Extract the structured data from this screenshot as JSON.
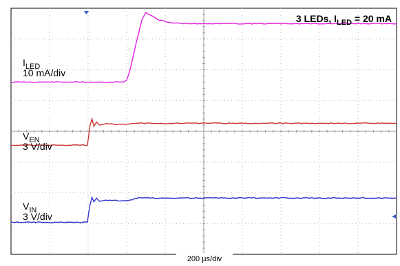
{
  "chart_data": {
    "type": "line",
    "title": {
      "prefix": "3 LEDs, I",
      "sub": "LED",
      "suffix": " = 20 mA"
    },
    "xlabel": "200 µs/div",
    "xlim": [
      0,
      10
    ],
    "ylim": [
      0,
      8
    ],
    "grid": true,
    "x_unit": "div",
    "y_unit": "div",
    "series": [
      {
        "name_main": "I",
        "name_sub": "LED",
        "scale": "10 mA/div",
        "color": "#e020e0",
        "points": [
          [
            0,
            5.6
          ],
          [
            2.92,
            5.6
          ],
          [
            3.0,
            5.66
          ],
          [
            3.1,
            6.05
          ],
          [
            3.25,
            6.9
          ],
          [
            3.4,
            7.64
          ],
          [
            3.5,
            7.86
          ],
          [
            3.62,
            7.77
          ],
          [
            3.85,
            7.61
          ],
          [
            4.2,
            7.52
          ],
          [
            4.7,
            7.5
          ],
          [
            10,
            7.5
          ]
        ]
      },
      {
        "name_main": "V",
        "name_sub": "EN",
        "scale": "3 V/div",
        "color": "#cc3333",
        "points": [
          [
            0,
            3.55
          ],
          [
            1.98,
            3.55
          ],
          [
            2.05,
            4.18
          ],
          [
            2.1,
            4.4
          ],
          [
            2.15,
            4.16
          ],
          [
            2.22,
            4.3
          ],
          [
            2.3,
            4.2
          ],
          [
            2.45,
            4.25
          ],
          [
            2.8,
            4.22
          ],
          [
            3.3,
            4.26
          ],
          [
            10,
            4.26
          ]
        ]
      },
      {
        "name_main": "V",
        "name_sub": "IN",
        "scale": "3 V/div",
        "color": "#3333cc",
        "points": [
          [
            0,
            1.04
          ],
          [
            1.98,
            1.04
          ],
          [
            2.04,
            1.55
          ],
          [
            2.1,
            1.85
          ],
          [
            2.15,
            1.7
          ],
          [
            2.22,
            1.82
          ],
          [
            2.3,
            1.72
          ],
          [
            2.45,
            1.76
          ],
          [
            3.0,
            1.74
          ],
          [
            3.3,
            1.83
          ],
          [
            10,
            1.83
          ]
        ]
      }
    ]
  }
}
